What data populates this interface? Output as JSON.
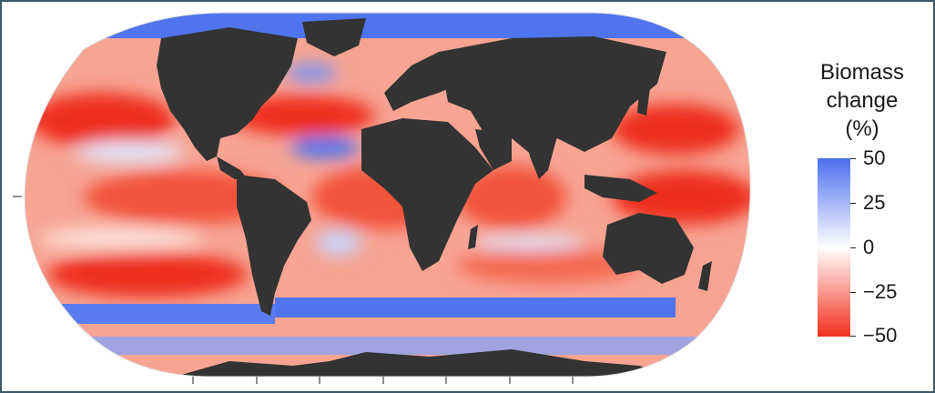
{
  "legend": {
    "title_line1": "Biomass",
    "title_line2": "change",
    "title_line3": "(%)",
    "ticks": [
      "50",
      "25",
      "0",
      "−25",
      "−50"
    ],
    "tick_values": [
      50,
      25,
      0,
      -25,
      -50
    ],
    "colors": {
      "max": "#4d6ff0",
      "mid": "#ffffff",
      "min": "#f2301c"
    }
  },
  "map": {
    "projection": "Robinson",
    "land_color": "#333333",
    "ocean_colors": {
      "strong_decline": "#ee2f1d",
      "decline": "#f6816a",
      "neutral": "#fbe6e2",
      "increase": "#4f74ee"
    }
  }
}
